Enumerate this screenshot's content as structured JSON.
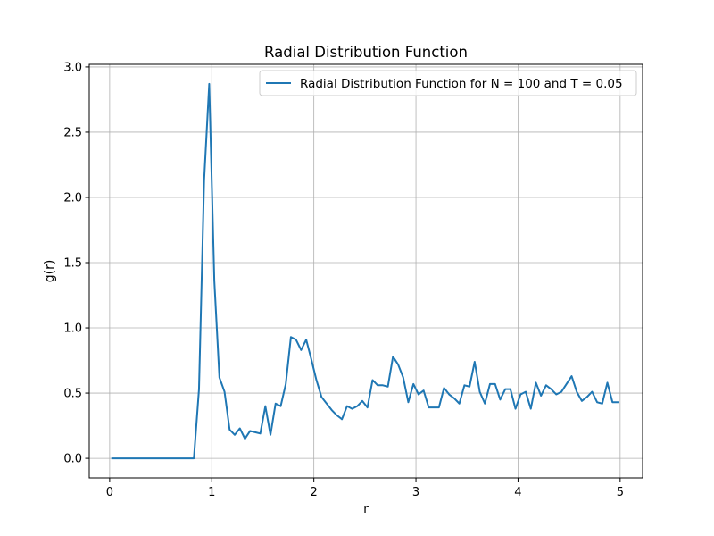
{
  "chart_data": {
    "type": "line",
    "title": "Radial Distribution Function",
    "xlabel": "r",
    "ylabel": "g(r)",
    "xlim": [
      -0.2,
      5.22
    ],
    "ylim": [
      -0.15,
      3.02
    ],
    "xticks": [
      0,
      1,
      2,
      3,
      4,
      5
    ],
    "xtick_labels": [
      "0",
      "1",
      "2",
      "3",
      "4",
      "5"
    ],
    "yticks": [
      0.0,
      0.5,
      1.0,
      1.5,
      2.0,
      2.5,
      3.0
    ],
    "ytick_labels": [
      "0.0",
      "0.5",
      "1.0",
      "1.5",
      "2.0",
      "2.5",
      "3.0"
    ],
    "grid": true,
    "legend_position": "top-right",
    "series": [
      {
        "name": "Radial Distribution Function for N = 100 and T = 0.05",
        "color": "#1f77b4",
        "x": [
          0.025,
          0.075,
          0.125,
          0.175,
          0.225,
          0.275,
          0.325,
          0.375,
          0.425,
          0.475,
          0.525,
          0.575,
          0.625,
          0.675,
          0.725,
          0.775,
          0.825,
          0.875,
          0.925,
          0.975,
          1.025,
          1.075,
          1.125,
          1.175,
          1.225,
          1.275,
          1.325,
          1.375,
          1.425,
          1.475,
          1.525,
          1.575,
          1.625,
          1.675,
          1.725,
          1.775,
          1.825,
          1.875,
          1.925,
          1.975,
          2.025,
          2.075,
          2.125,
          2.175,
          2.225,
          2.275,
          2.325,
          2.375,
          2.425,
          2.475,
          2.525,
          2.575,
          2.625,
          2.675,
          2.725,
          2.775,
          2.825,
          2.875,
          2.925,
          2.975,
          3.025,
          3.075,
          3.125,
          3.175,
          3.225,
          3.275,
          3.325,
          3.375,
          3.425,
          3.475,
          3.525,
          3.575,
          3.625,
          3.675,
          3.725,
          3.775,
          3.825,
          3.875,
          3.925,
          3.975,
          4.025,
          4.075,
          4.125,
          4.175,
          4.225,
          4.275,
          4.325,
          4.375,
          4.425,
          4.475,
          4.525,
          4.575,
          4.625,
          4.675,
          4.725,
          4.775,
          4.825,
          4.875,
          4.925,
          4.975
        ],
        "y": [
          0.0,
          0.0,
          0.0,
          0.0,
          0.0,
          0.0,
          0.0,
          0.0,
          0.0,
          0.0,
          0.0,
          0.0,
          0.0,
          0.0,
          0.0,
          0.0,
          0.0,
          0.53,
          2.13,
          2.87,
          1.36,
          0.62,
          0.51,
          0.22,
          0.18,
          0.23,
          0.15,
          0.21,
          0.2,
          0.19,
          0.4,
          0.18,
          0.42,
          0.4,
          0.57,
          0.93,
          0.91,
          0.83,
          0.91,
          0.76,
          0.6,
          0.47,
          0.42,
          0.37,
          0.33,
          0.3,
          0.4,
          0.38,
          0.4,
          0.44,
          0.39,
          0.6,
          0.56,
          0.56,
          0.55,
          0.78,
          0.72,
          0.62,
          0.43,
          0.57,
          0.49,
          0.52,
          0.39,
          0.39,
          0.39,
          0.54,
          0.49,
          0.46,
          0.42,
          0.56,
          0.55,
          0.74,
          0.51,
          0.42,
          0.57,
          0.57,
          0.45,
          0.53,
          0.53,
          0.38,
          0.49,
          0.51,
          0.38,
          0.58,
          0.48,
          0.56,
          0.53,
          0.49,
          0.51,
          0.57,
          0.63,
          0.51,
          0.44,
          0.47,
          0.51,
          0.43,
          0.42,
          0.58,
          0.43,
          0.43
        ]
      }
    ]
  }
}
